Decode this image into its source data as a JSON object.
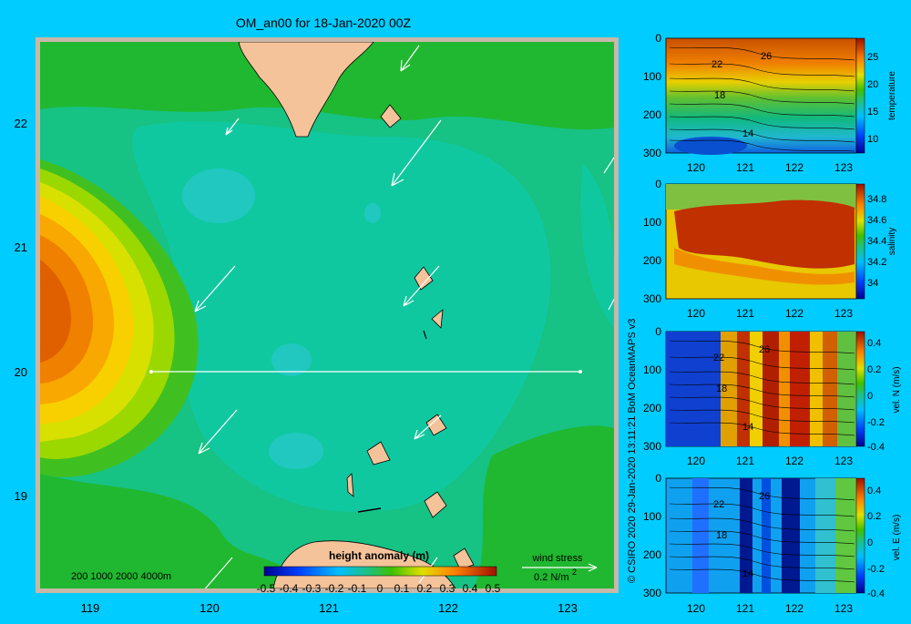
{
  "colors": {
    "background": "#00ccff",
    "frame": "#c8b8a8",
    "land": "#f5c39a",
    "vector": "#ffffff",
    "contour": "#000000"
  },
  "map": {
    "title": "OM_an00 for 18-Jan-2020 00Z",
    "x_ticks": [
      "119",
      "120",
      "121",
      "122",
      "123"
    ],
    "y_ticks": [
      "22",
      "21",
      "20",
      "19"
    ],
    "depth_scale_text": "200  1000  2000  4000m",
    "colorbar_title": "height anomaly (m)",
    "colorbar_ticks": [
      "-0.5",
      "-0.4",
      "-0.3",
      "-0.2",
      "-0.1",
      "0",
      "0.1",
      "0.2",
      "0.3",
      "0.4",
      "0.5"
    ],
    "wind_stress_label": "wind stress",
    "wind_stress_value": "0.2 N/m",
    "wind_stress_exp": "2"
  },
  "credit": "© CSIRO 2020   29-Jan-2020 13:11:21 BoM OceanMAPS v3",
  "chart_data": [
    {
      "type": "heatmap",
      "title": "OM_an00 for 18-Jan-2020 00Z",
      "variable": "height anomaly (m)",
      "xlim": [
        118.5,
        123.5
      ],
      "ylim": [
        18.3,
        22.7
      ],
      "clim": [
        -0.5,
        0.5
      ],
      "section_line": {
        "lat": 20,
        "lon_start": 119.5,
        "lon_end": 123.2
      },
      "features": [
        "sea-surface height anomaly field",
        "wind stress vectors",
        "land masses"
      ]
    },
    {
      "type": "heatmap",
      "panel": "temperature",
      "x_ticks": [
        "120",
        "121",
        "122",
        "123"
      ],
      "y_ticks": [
        "0",
        "100",
        "200",
        "300"
      ],
      "colorbar_label": "temperature",
      "colorbar_ticks": [
        "25",
        "20",
        "15",
        "10"
      ],
      "clim": [
        8,
        28
      ],
      "contour_labels": [
        "26",
        "22",
        "18",
        "14"
      ]
    },
    {
      "type": "heatmap",
      "panel": "salinity",
      "x_ticks": [
        "120",
        "121",
        "122",
        "123"
      ],
      "y_ticks": [
        "0",
        "100",
        "200",
        "300"
      ],
      "colorbar_label": "salinity",
      "colorbar_ticks": [
        "34.8",
        "34.6",
        "34.4",
        "34.2",
        "34"
      ],
      "clim": [
        33.9,
        34.9
      ]
    },
    {
      "type": "heatmap",
      "panel": "vel. N (m/s)",
      "x_ticks": [
        "120",
        "121",
        "122",
        "123"
      ],
      "y_ticks": [
        "0",
        "100",
        "200",
        "300"
      ],
      "colorbar_label": "vel. N (m/s)",
      "colorbar_ticks": [
        "0.4",
        "0.2",
        "0",
        "-0.2",
        "-0.4"
      ],
      "clim": [
        -0.5,
        0.5
      ],
      "contour_labels": [
        "26",
        "22",
        "18",
        "14"
      ]
    },
    {
      "type": "heatmap",
      "panel": "vel. E (m/s)",
      "x_ticks": [
        "120",
        "121",
        "122",
        "123"
      ],
      "y_ticks": [
        "0",
        "100",
        "200",
        "300"
      ],
      "colorbar_label": "vel. E (m/s)",
      "colorbar_ticks": [
        "0.4",
        "0.2",
        "0",
        "-0.2",
        "-0.4"
      ],
      "clim": [
        -0.5,
        0.5
      ],
      "contour_labels": [
        "26",
        "22",
        "18",
        "14"
      ]
    }
  ]
}
